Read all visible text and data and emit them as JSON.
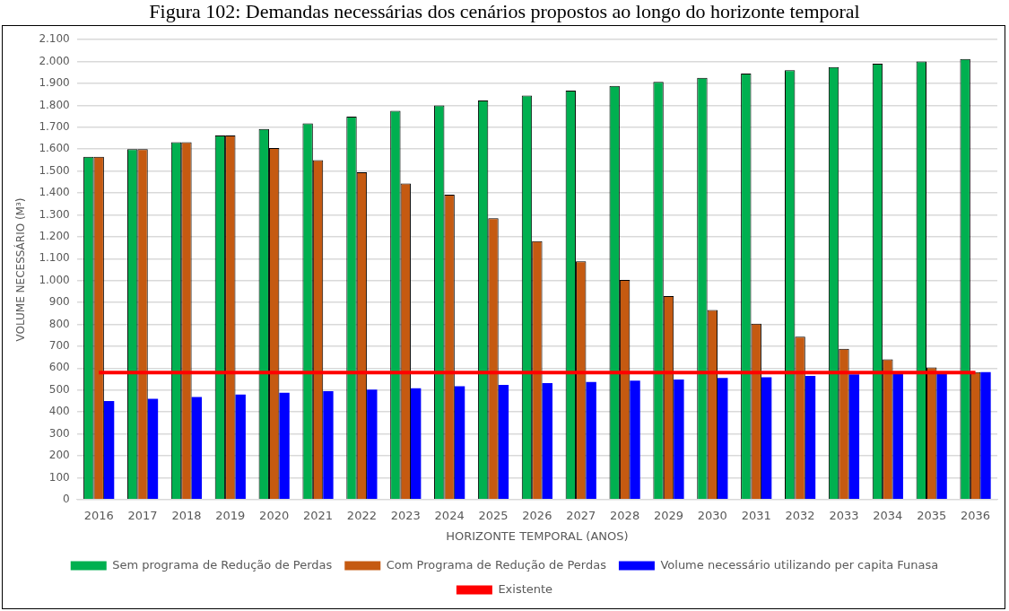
{
  "chart_data": {
    "type": "bar",
    "title": "Figura 102: Demandas necessárias dos cenários propostos ao longo do horizonte temporal",
    "xlabel": "HORIZONTE TEMPORAL (ANOS)",
    "ylabel": "VOLUME NECESSÁRIO (M³)",
    "categories": [
      "2016",
      "2017",
      "2018",
      "2019",
      "2020",
      "2021",
      "2022",
      "2023",
      "2024",
      "2025",
      "2026",
      "2027",
      "2028",
      "2029",
      "2030",
      "2031",
      "2032",
      "2033",
      "2034",
      "2035",
      "2036"
    ],
    "series": [
      {
        "name": "Sem programa de Redução de Perdas",
        "color": "#00b050",
        "values": [
          1565,
          1600,
          1632,
          1662,
          1692,
          1718,
          1748,
          1775,
          1800,
          1822,
          1845,
          1867,
          1889,
          1907,
          1926,
          1945,
          1960,
          1975,
          1990,
          2000,
          2012
        ]
      },
      {
        "name": "Com Programa de Redução de Perdas",
        "color": "#c55a11",
        "values": [
          1565,
          1600,
          1632,
          1662,
          1605,
          1550,
          1495,
          1443,
          1392,
          1285,
          1180,
          1088,
          1003,
          929,
          866,
          803,
          744,
          688,
          640,
          603,
          582
        ]
      },
      {
        "name": "Volume necessário utilizando per capita Funasa",
        "color": "#0000ff",
        "values": [
          450,
          460,
          468,
          480,
          488,
          495,
          502,
          508,
          517,
          524,
          532,
          537,
          543,
          548,
          555,
          558,
          565,
          572,
          575,
          578,
          582
        ]
      },
      {
        "name": "Existente",
        "type": "line",
        "color": "#ff0000",
        "marker": "none",
        "values": [
          580,
          580,
          580,
          580,
          580,
          580,
          580,
          580,
          580,
          580,
          580,
          580,
          580,
          580,
          580,
          580,
          580,
          580,
          580,
          580,
          580
        ]
      }
    ],
    "ylim": [
      0,
      2100
    ],
    "yticks": [
      {
        "value": 0,
        "label": "0"
      },
      {
        "value": 100,
        "label": "100"
      },
      {
        "value": 200,
        "label": "200"
      },
      {
        "value": 300,
        "label": "300"
      },
      {
        "value": 400,
        "label": "400"
      },
      {
        "value": 500,
        "label": "500"
      },
      {
        "value": 600,
        "label": "600"
      },
      {
        "value": 700,
        "label": "700"
      },
      {
        "value": 800,
        "label": "800"
      },
      {
        "value": 900,
        "label": "900"
      },
      {
        "value": 1000,
        "label": "1.000"
      },
      {
        "value": 1100,
        "label": "1.100"
      },
      {
        "value": 1200,
        "label": "1.200"
      },
      {
        "value": 1300,
        "label": "1.300"
      },
      {
        "value": 1400,
        "label": "1.400"
      },
      {
        "value": 1500,
        "label": "1.500"
      },
      {
        "value": 1600,
        "label": "1.600"
      },
      {
        "value": 1700,
        "label": "1.700"
      },
      {
        "value": 1800,
        "label": "1.800"
      },
      {
        "value": 1900,
        "label": "1.900"
      },
      {
        "value": 2000,
        "label": "2.000"
      },
      {
        "value": 2100,
        "label": "2.100"
      }
    ],
    "grid": "y",
    "legend": "bottom"
  }
}
